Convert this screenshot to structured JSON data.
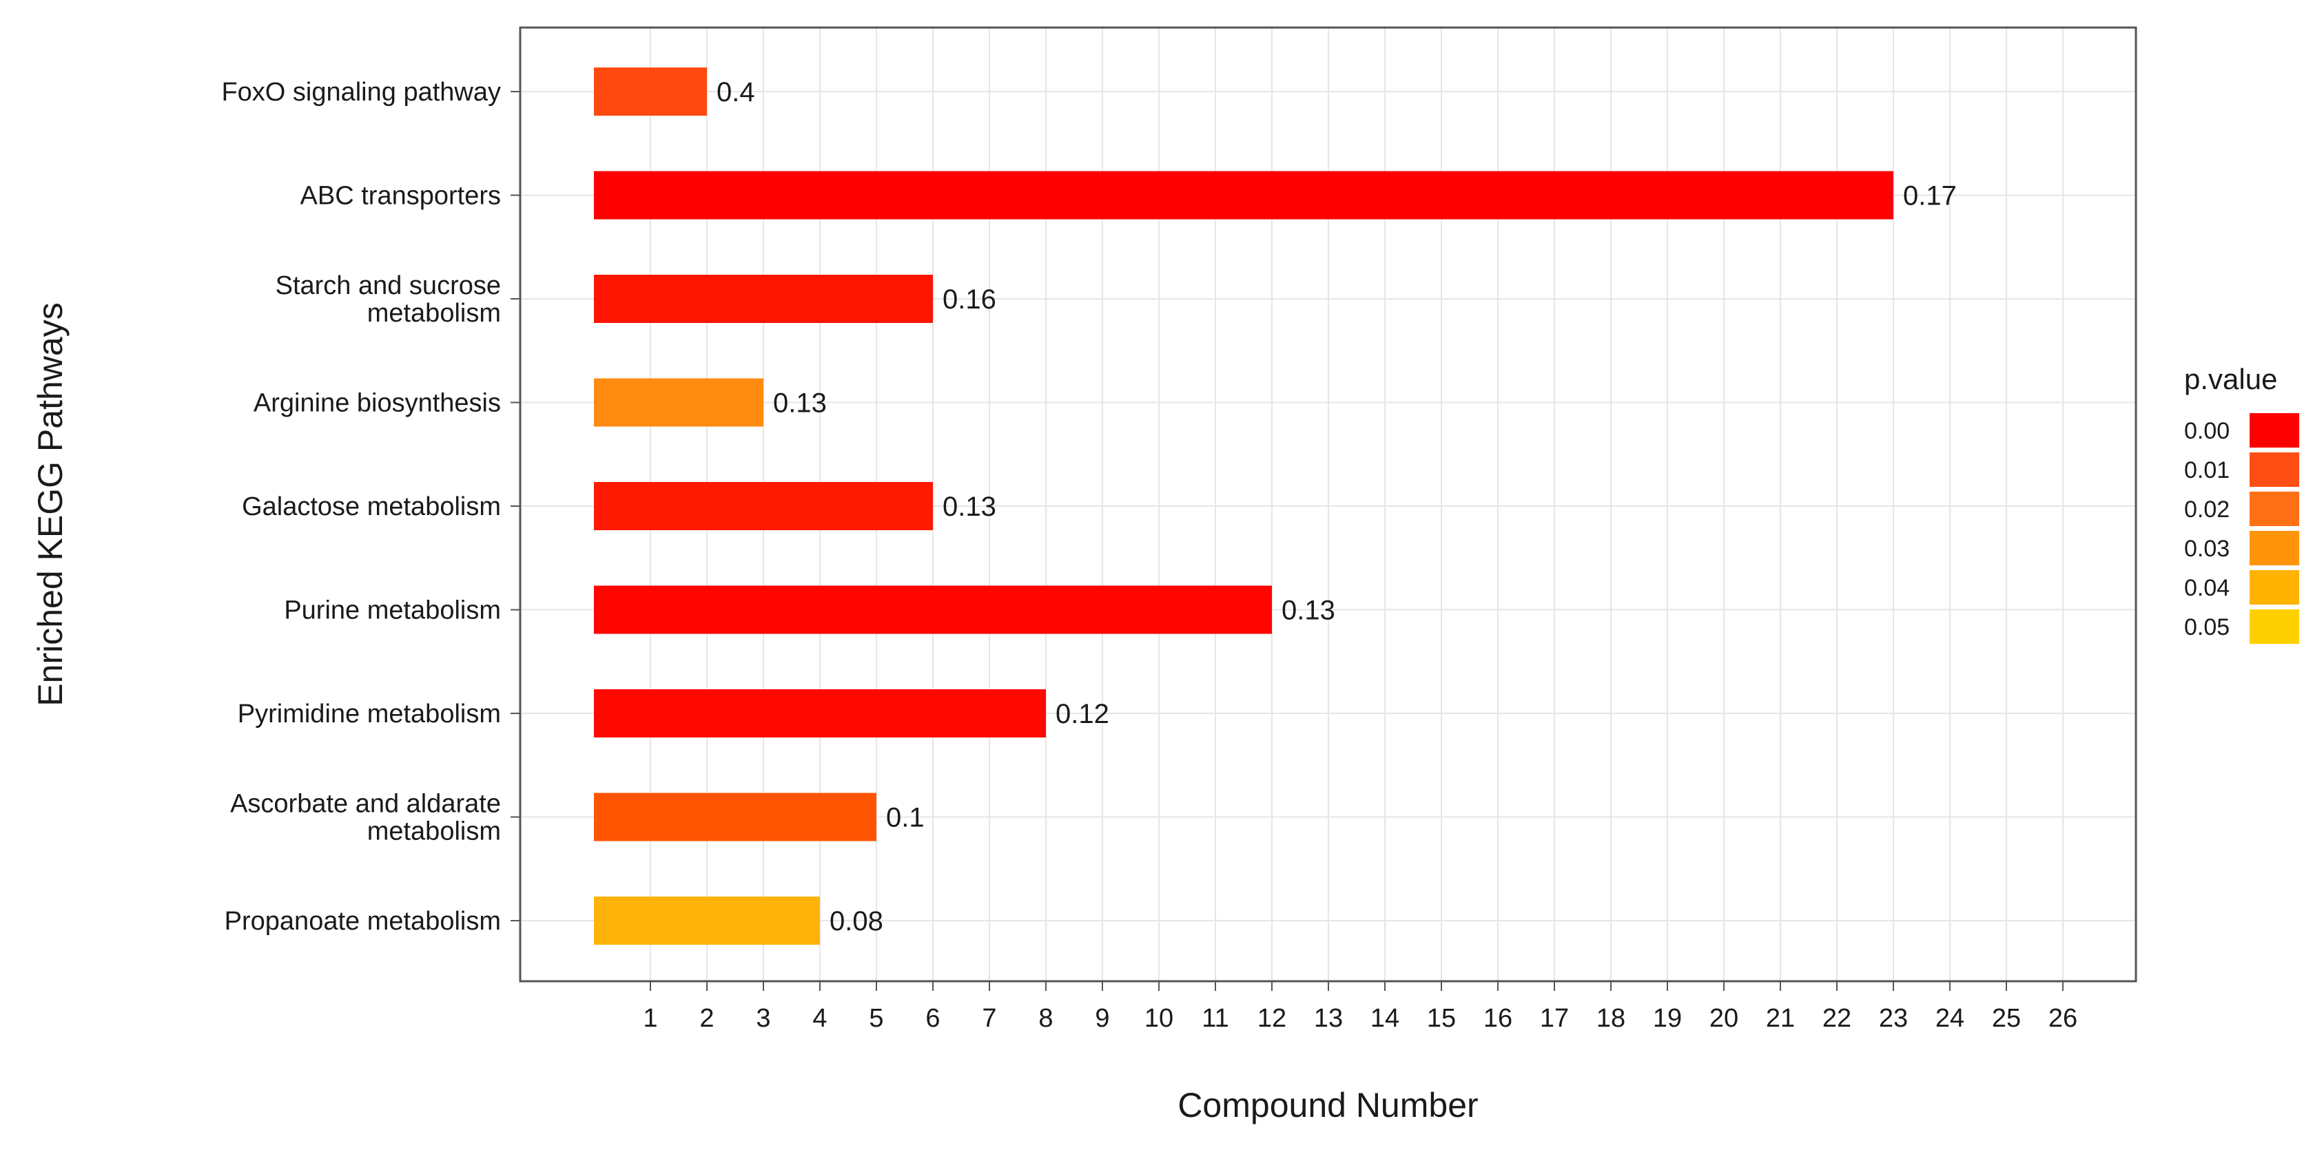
{
  "chart_data": {
    "type": "bar",
    "orientation": "horizontal",
    "title": "",
    "xlabel": "Compound Number",
    "ylabel": "Enriched KEGG Pathways",
    "xlim": [
      0,
      27
    ],
    "xticks": [
      1,
      2,
      3,
      4,
      5,
      6,
      7,
      8,
      9,
      10,
      11,
      12,
      13,
      14,
      15,
      16,
      17,
      18,
      19,
      20,
      21,
      22,
      23,
      24,
      25,
      26
    ],
    "grid": true,
    "categories": [
      [
        "FoxO signaling pathway"
      ],
      [
        "ABC transporters"
      ],
      [
        "Starch and sucrose",
        "metabolism"
      ],
      [
        "Arginine biosynthesis"
      ],
      [
        "Galactose metabolism"
      ],
      [
        "Purine metabolism"
      ],
      [
        "Pyrimidine metabolism"
      ],
      [
        "Ascorbate and aldarate",
        "metabolism"
      ],
      [
        "Propanoate metabolism"
      ]
    ],
    "values": [
      2,
      23,
      6,
      3,
      6,
      12,
      8,
      5,
      4
    ],
    "data_labels": [
      "0.4",
      "0.17",
      "0.16",
      "0.13",
      "0.13",
      "0.13",
      "0.12",
      "0.1",
      "0.08"
    ],
    "bar_colors": [
      "#fe4a10",
      "#ff0000",
      "#fe1500",
      "#ff8a10",
      "#fe1a00",
      "#ff0500",
      "#ff0800",
      "#ff5500",
      "#ffb30a"
    ],
    "legend": {
      "title": "p.value",
      "placement": "right",
      "entries": [
        {
          "label": "0.00",
          "color": "#ff0000"
        },
        {
          "label": "0.01",
          "color": "#ff4e14"
        },
        {
          "label": "0.02",
          "color": "#ff7014"
        },
        {
          "label": "0.03",
          "color": "#ff930a"
        },
        {
          "label": "0.04",
          "color": "#ffb200"
        },
        {
          "label": "0.05",
          "color": "#ffd000"
        }
      ]
    }
  }
}
